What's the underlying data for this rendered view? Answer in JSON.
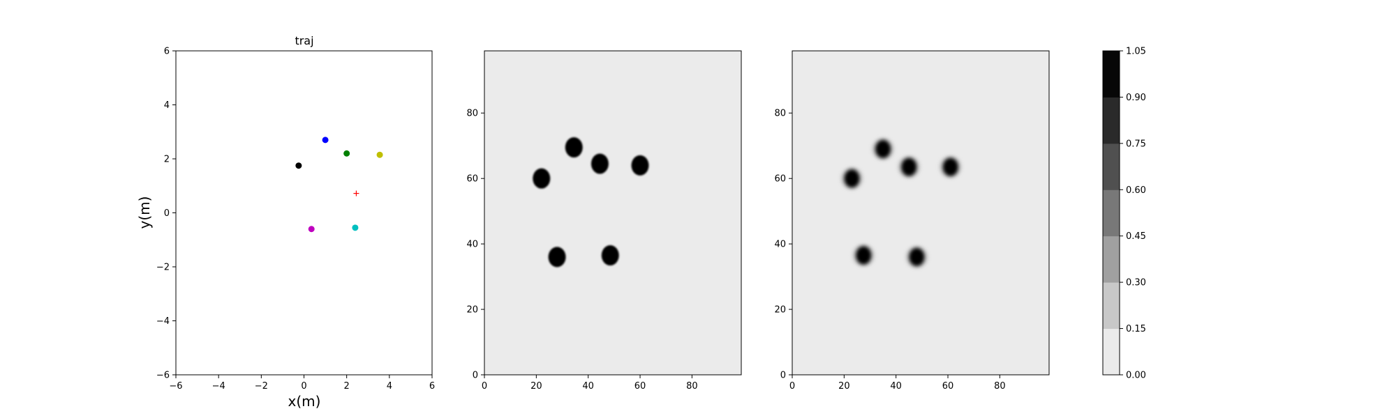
{
  "chart_data": [
    {
      "type": "scatter",
      "title": "traj",
      "xlabel": "x(m)",
      "ylabel": "y(m)",
      "xlim": [
        -6,
        6
      ],
      "ylim": [
        -6,
        6
      ],
      "xticks": [
        "−6",
        "−4",
        "−2",
        "0",
        "2",
        "4",
        "6"
      ],
      "yticks": [
        "−6",
        "−4",
        "−2",
        "0",
        "2",
        "4",
        "6"
      ],
      "grid": false,
      "points": [
        {
          "x": 1.0,
          "y": 2.7,
          "color": "#0000ff",
          "marker": "dot"
        },
        {
          "x": 2.0,
          "y": 2.2,
          "color": "#008000",
          "marker": "dot"
        },
        {
          "x": 3.55,
          "y": 2.15,
          "color": "#bfbf00",
          "marker": "dot"
        },
        {
          "x": -0.25,
          "y": 1.75,
          "color": "#000000",
          "marker": "dot"
        },
        {
          "x": 0.35,
          "y": -0.6,
          "color": "#bf00bf",
          "marker": "dot"
        },
        {
          "x": 2.4,
          "y": -0.55,
          "color": "#00bfbf",
          "marker": "dot"
        },
        {
          "x": 2.45,
          "y": 0.72,
          "color": "#ff0000",
          "marker": "plus"
        }
      ]
    },
    {
      "type": "heatmap",
      "background_value": 0.0,
      "xlim": [
        0,
        99
      ],
      "ylim": [
        0,
        99
      ],
      "xticks": [
        "0",
        "20",
        "40",
        "60",
        "80"
      ],
      "yticks": [
        "0",
        "20",
        "40",
        "60",
        "80"
      ],
      "blobs": [
        {
          "x": 22,
          "y": 60,
          "value": 1.0
        },
        {
          "x": 34.5,
          "y": 69.5,
          "value": 1.0
        },
        {
          "x": 44.5,
          "y": 64.5,
          "value": 1.0
        },
        {
          "x": 60,
          "y": 64,
          "value": 1.0
        },
        {
          "x": 28,
          "y": 36,
          "value": 1.0
        },
        {
          "x": 48.5,
          "y": 36.5,
          "value": 1.0
        }
      ]
    },
    {
      "type": "heatmap",
      "background_value": 0.0,
      "xlim": [
        0,
        99
      ],
      "ylim": [
        0,
        99
      ],
      "xticks": [
        "0",
        "20",
        "40",
        "60",
        "80"
      ],
      "yticks": [
        "0",
        "20",
        "40",
        "60",
        "80"
      ],
      "blobs": [
        {
          "x": 23,
          "y": 60,
          "value": 1.0
        },
        {
          "x": 35,
          "y": 69,
          "value": 1.0
        },
        {
          "x": 45,
          "y": 63.5,
          "value": 1.0
        },
        {
          "x": 61,
          "y": 63.5,
          "value": 1.0
        },
        {
          "x": 27.5,
          "y": 36.5,
          "value": 1.0
        },
        {
          "x": 48,
          "y": 36,
          "value": 1.0
        }
      ]
    }
  ],
  "colorbar": {
    "ticks": [
      "0.00",
      "0.15",
      "0.30",
      "0.45",
      "0.60",
      "0.75",
      "0.90",
      "1.05"
    ],
    "colors": [
      "#ebebeb",
      "#c8c8c8",
      "#a0a0a0",
      "#787878",
      "#505050",
      "#2a2a2a",
      "#070707"
    ]
  }
}
